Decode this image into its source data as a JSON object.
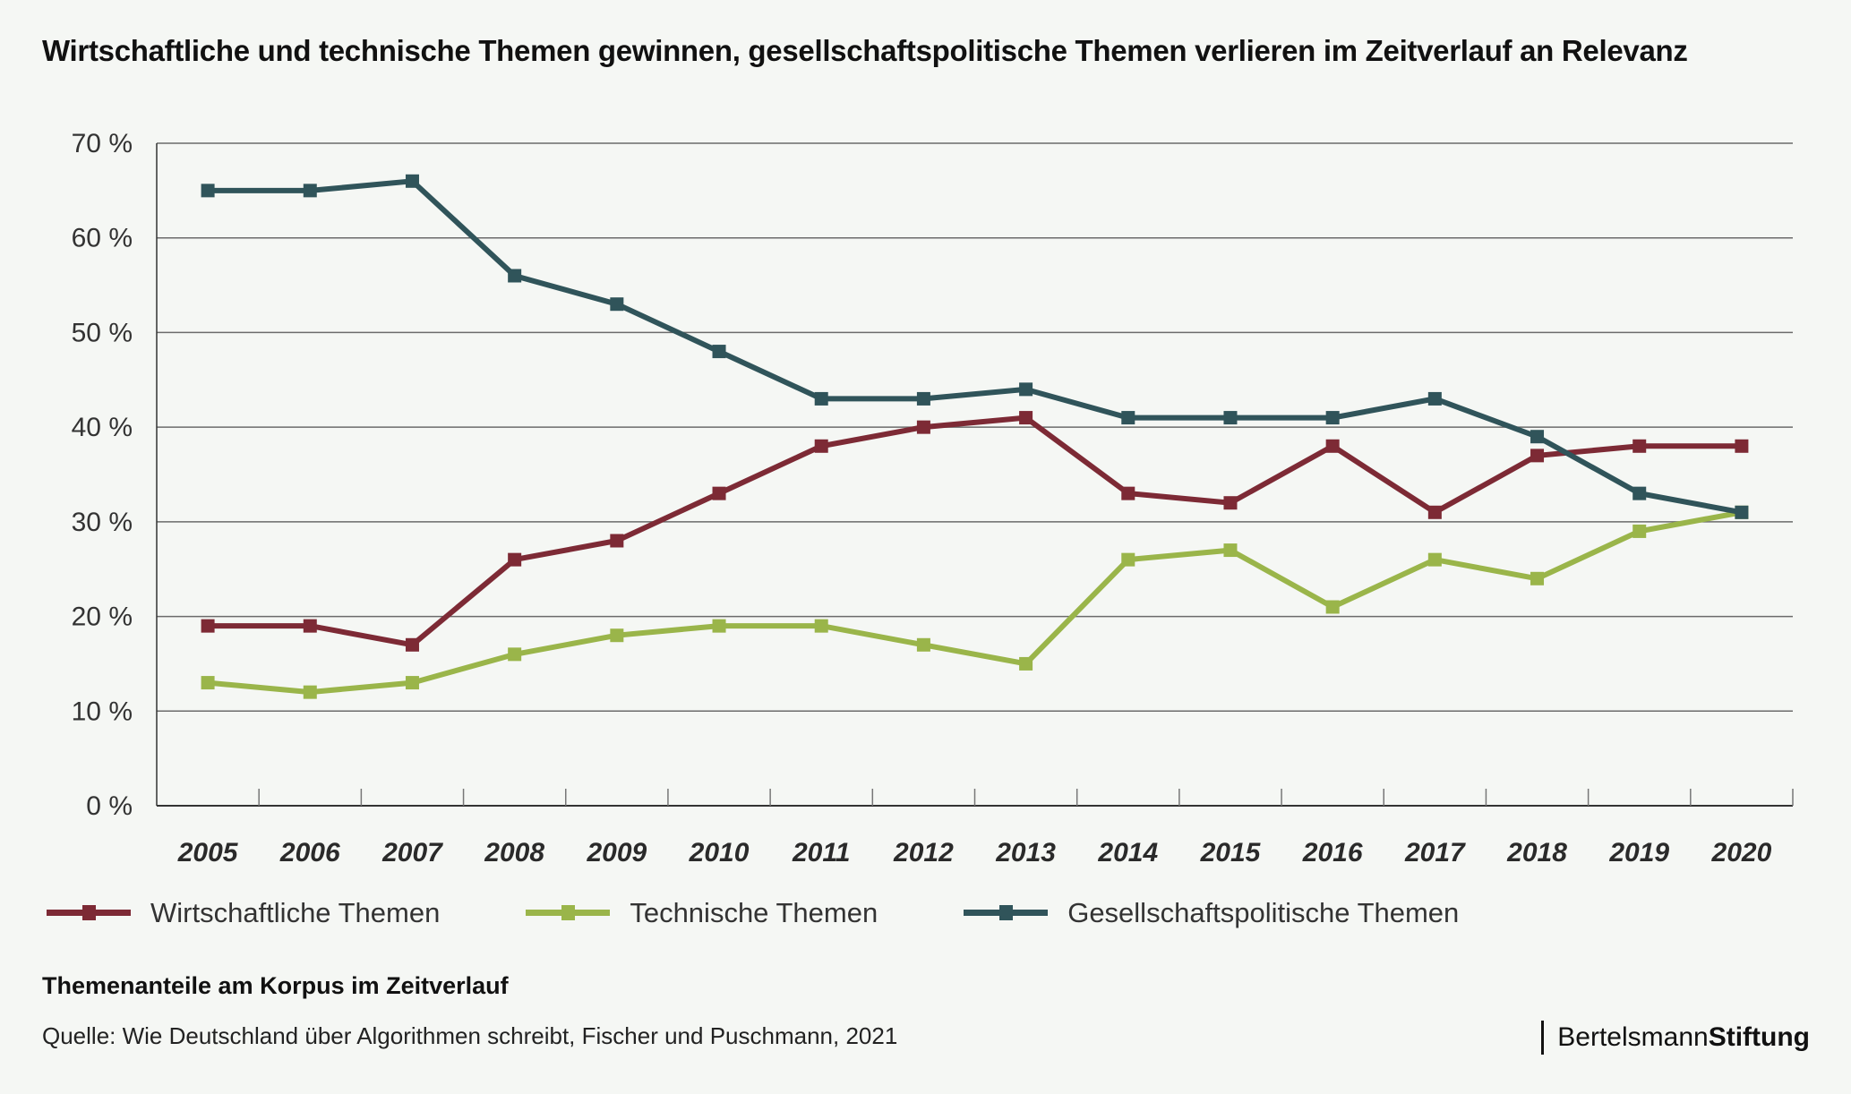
{
  "title": "Wirtschaftliche und technische Themen gewinnen, gesellschaftspolitische Themen verlieren im Zeitverlauf an Relevanz",
  "subtitle": "Themenanteile am Korpus im Zeitverlauf",
  "source": "Quelle: Wie Deutschland über Algorithmen schreibt, Fischer und Puschmann, 2021",
  "brand": {
    "regular": "Bertelsmann",
    "bold": "Stiftung"
  },
  "chart_data": {
    "type": "line",
    "title": "Wirtschaftliche und technische Themen gewinnen, gesellschaftspolitische Themen verlieren im Zeitverlauf an Relevanz",
    "xlabel": "",
    "ylabel": "",
    "x": [
      "2005",
      "2006",
      "2007",
      "2008",
      "2009",
      "2010",
      "2011",
      "2012",
      "2013",
      "2014",
      "2015",
      "2016",
      "2017",
      "2018",
      "2019",
      "2020"
    ],
    "ylim": [
      0,
      70
    ],
    "yticks": [
      0,
      10,
      20,
      30,
      40,
      50,
      60,
      70
    ],
    "ytick_labels": [
      "0 %",
      "10 %",
      "20 %",
      "30 %",
      "40 %",
      "50 %",
      "60 %",
      "70 %"
    ],
    "grid": true,
    "legend_position": "bottom",
    "series": [
      {
        "name": "Wirtschaftliche Themen",
        "color": "#7d2a35",
        "values": [
          19,
          19,
          17,
          26,
          28,
          33,
          38,
          40,
          41,
          33,
          32,
          38,
          31,
          37,
          38,
          38
        ]
      },
      {
        "name": "Technische Themen",
        "color": "#9ab54a",
        "values": [
          13,
          12,
          13,
          16,
          18,
          19,
          19,
          17,
          15,
          26,
          27,
          21,
          26,
          24,
          29,
          31
        ]
      },
      {
        "name": "Gesellschaftspolitische Themen",
        "color": "#30545a",
        "values": [
          65,
          65,
          66,
          56,
          53,
          48,
          43,
          43,
          44,
          41,
          41,
          41,
          43,
          39,
          33,
          31
        ]
      }
    ]
  }
}
